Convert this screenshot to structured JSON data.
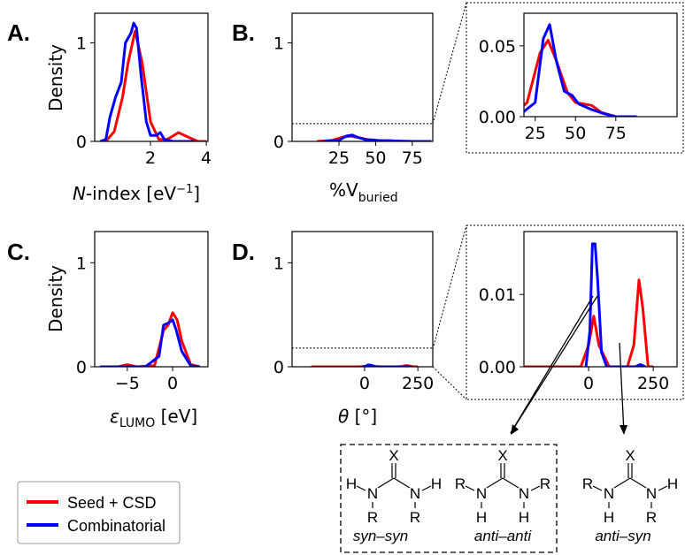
{
  "colors": {
    "seed_csd": "#ff0000",
    "combinatorial": "#0000ff"
  },
  "legend": [
    {
      "label": "Seed + CSD",
      "color": "#ff0000"
    },
    {
      "label": "Combinatorial",
      "color": "#0000ff"
    }
  ],
  "chart_data": [
    {
      "id": "A",
      "panel_label": "A.",
      "type": "line",
      "xlabel_italic": "N",
      "xlabel_rest": "-index [eV",
      "xlabel_sup": "−1",
      "xlabel_end": "]",
      "ylabel": "Density",
      "xlim": [
        0,
        4.06
      ],
      "ylim": [
        0,
        1.3
      ],
      "xticks": [
        "2",
        "4"
      ],
      "xtick_values": [
        2,
        4
      ],
      "yticks": [
        "0",
        "1"
      ],
      "ytick_values": [
        0,
        1
      ],
      "series": [
        {
          "name": "Seed + CSD",
          "points": [
            [
              0.4,
              0
            ],
            [
              0.7,
              0.1
            ],
            [
              1.0,
              0.45
            ],
            [
              1.2,
              0.8
            ],
            [
              1.45,
              1.12
            ],
            [
              1.7,
              0.8
            ],
            [
              2.0,
              0.2
            ],
            [
              2.3,
              0.02
            ],
            [
              2.6,
              0.02
            ],
            [
              3.0,
              0.09
            ],
            [
              3.3,
              0.05
            ],
            [
              3.7,
              0
            ],
            [
              4,
              0
            ]
          ]
        },
        {
          "name": "Combinatorial",
          "points": [
            [
              0.2,
              0
            ],
            [
              0.4,
              0.02
            ],
            [
              0.55,
              0.25
            ],
            [
              0.75,
              0.45
            ],
            [
              0.95,
              0.6
            ],
            [
              1.1,
              1.0
            ],
            [
              1.3,
              1.1
            ],
            [
              1.4,
              1.2
            ],
            [
              1.5,
              1.15
            ],
            [
              1.65,
              0.7
            ],
            [
              1.85,
              0.2
            ],
            [
              2.0,
              0.06
            ],
            [
              2.2,
              0.06
            ],
            [
              2.35,
              0.09
            ],
            [
              2.5,
              0.02
            ],
            [
              2.8,
              0
            ],
            [
              3.6,
              0
            ]
          ]
        }
      ]
    },
    {
      "id": "B",
      "panel_label": "B.",
      "type": "line",
      "xlabel_main": "%V",
      "xlabel_sub": "buried",
      "xlim": [
        -7,
        89
      ],
      "ylim": [
        0,
        1.3
      ],
      "zoom_ymax": 0.18,
      "xticks": [
        "25",
        "50",
        "75"
      ],
      "xtick_values": [
        25,
        50,
        75
      ],
      "yticks": [
        "0",
        "1"
      ],
      "ytick_values": [
        0,
        1
      ],
      "series": [
        {
          "name": "Seed + CSD",
          "points": [
            [
              10,
              0
            ],
            [
              20,
              0.01
            ],
            [
              28,
              0.045
            ],
            [
              33,
              0.054
            ],
            [
              38,
              0.04
            ],
            [
              45,
              0.017
            ],
            [
              50,
              0.01
            ],
            [
              60,
              0.008
            ],
            [
              66,
              0.003
            ],
            [
              75,
              0
            ],
            [
              88,
              0
            ]
          ]
        },
        {
          "name": "Combinatorial",
          "points": [
            [
              14,
              0
            ],
            [
              25,
              0.01
            ],
            [
              30,
              0.055
            ],
            [
              34,
              0.065
            ],
            [
              38,
              0.04
            ],
            [
              43,
              0.018
            ],
            [
              48,
              0.015
            ],
            [
              52,
              0.009
            ],
            [
              60,
              0.005
            ],
            [
              68,
              0.002
            ],
            [
              75,
              0
            ],
            [
              88,
              0
            ]
          ]
        }
      ]
    },
    {
      "id": "B-inset",
      "type": "line",
      "xlim": [
        18,
        113
      ],
      "ylim": [
        0,
        0.073
      ],
      "xticks": [
        "25",
        "50",
        "75"
      ],
      "xtick_values": [
        25,
        50,
        75
      ],
      "yticks": [
        "0.00",
        "0.05"
      ],
      "ytick_values": [
        0,
        0.05
      ],
      "series": "same as B"
    },
    {
      "id": "C",
      "panel_label": "C.",
      "type": "line",
      "xlabel_main": "ε",
      "xlabel_sub": "LUMO",
      "xlabel_end": " [eV]",
      "ylabel": "Density",
      "xlim": [
        -8.6,
        3.9
      ],
      "ylim": [
        0,
        1.3
      ],
      "xticks": [
        "−5",
        "0"
      ],
      "xtick_values": [
        -5,
        0
      ],
      "yticks": [
        "0",
        "1"
      ],
      "ytick_values": [
        0,
        1
      ],
      "series": [
        {
          "name": "Seed + CSD",
          "points": [
            [
              -8,
              0
            ],
            [
              -6,
              0
            ],
            [
              -5,
              0.02
            ],
            [
              -4,
              0
            ],
            [
              -2,
              0.01
            ],
            [
              -1,
              0.35
            ],
            [
              -0.5,
              0.4
            ],
            [
              0,
              0.52
            ],
            [
              0.5,
              0.45
            ],
            [
              1,
              0.25
            ],
            [
              2,
              0.02
            ],
            [
              3,
              0
            ]
          ]
        },
        {
          "name": "Combinatorial",
          "points": [
            [
              -8,
              0
            ],
            [
              -3,
              0
            ],
            [
              -1.5,
              0.1
            ],
            [
              -1,
              0.4
            ],
            [
              -0.5,
              0.42
            ],
            [
              0,
              0.45
            ],
            [
              0.4,
              0.35
            ],
            [
              1,
              0.15
            ],
            [
              2,
              0.01
            ],
            [
              3,
              0
            ]
          ]
        }
      ]
    },
    {
      "id": "D",
      "panel_label": "D.",
      "type": "line",
      "xlabel_main": "θ",
      "xlabel_end": " [°]",
      "xlim": [
        -340,
        320
      ],
      "ylim": [
        0,
        1.3
      ],
      "zoom_ymax": 0.18,
      "xticks": [
        "0",
        "250"
      ],
      "xtick_values": [
        0,
        250
      ],
      "yticks": [
        "0",
        "1"
      ],
      "ytick_values": [
        0,
        1
      ],
      "series": [
        {
          "name": "Seed + CSD",
          "points": [
            [
              -250,
              0
            ],
            [
              -30,
              0
            ],
            [
              0,
              0.003
            ],
            [
              20,
              0.007
            ],
            [
              40,
              0.003
            ],
            [
              80,
              0
            ],
            [
              150,
              0
            ],
            [
              175,
              0.003
            ],
            [
              195,
              0.012
            ],
            [
              210,
              0.008
            ],
            [
              230,
              0
            ],
            [
              250,
              0
            ]
          ]
        },
        {
          "name": "Combinatorial",
          "points": [
            [
              -10,
              0
            ],
            [
              5,
              0.005
            ],
            [
              15,
              0.017
            ],
            [
              25,
              0.017
            ],
            [
              35,
              0.012
            ],
            [
              50,
              0.002
            ],
            [
              70,
              0
            ],
            [
              180,
              0
            ],
            [
              200,
              0.0003
            ],
            [
              220,
              0
            ]
          ]
        }
      ]
    },
    {
      "id": "D-inset",
      "type": "line",
      "xlim": [
        -250,
        342
      ],
      "ylim": [
        0,
        0.0187
      ],
      "xticks": [
        "0",
        "250"
      ],
      "xtick_values": [
        0,
        250
      ],
      "yticks": [
        "0.00",
        "0.01"
      ],
      "ytick_values": [
        0,
        0.01
      ],
      "series": "same as D"
    }
  ],
  "structures": {
    "X": "X",
    "N": "N",
    "H": "H",
    "R": "R",
    "syn_syn": "syn–syn",
    "anti_anti": "anti–anti",
    "anti_syn": "anti–syn"
  }
}
